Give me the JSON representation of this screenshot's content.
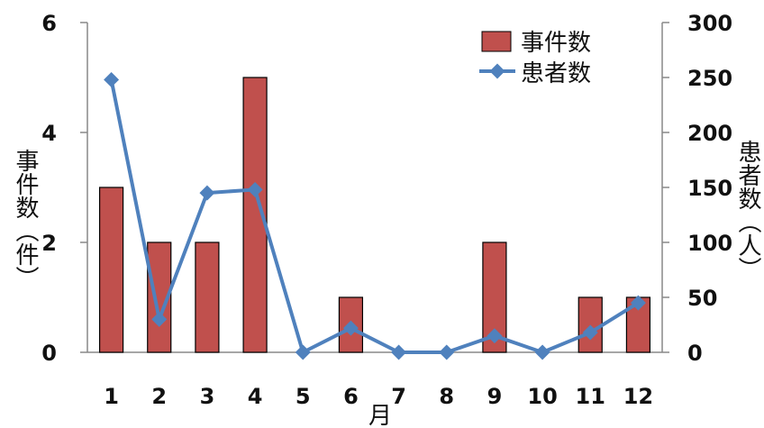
{
  "chart_data": {
    "type": "bar",
    "categories": [
      "1",
      "2",
      "3",
      "4",
      "5",
      "6",
      "7",
      "8",
      "9",
      "10",
      "11",
      "12"
    ],
    "series": [
      {
        "name": "事件数",
        "type": "bar",
        "axis": "left",
        "values": [
          3,
          2,
          2,
          5,
          0,
          1,
          0,
          0,
          2,
          0,
          1,
          1
        ]
      },
      {
        "name": "患者数",
        "type": "line",
        "axis": "right",
        "values": [
          248,
          30,
          145,
          148,
          0,
          22,
          0,
          0,
          15,
          0,
          18,
          45
        ]
      }
    ],
    "xlabel": "月",
    "ylabel_left": "事件数（件）",
    "ylabel_right": "患者数（人）",
    "ylim_left": [
      0,
      6
    ],
    "ylim_right": [
      0,
      300
    ],
    "yticks_left": [
      "0",
      "2",
      "4",
      "6"
    ],
    "yticks_right": [
      "0",
      "50",
      "100",
      "150",
      "200",
      "250",
      "300"
    ],
    "legend_position": "top-right",
    "colors": {
      "bar_fill": "#c0504d",
      "bar_stroke": "#000000",
      "line": "#4f81bd",
      "axis": "#888888"
    }
  }
}
